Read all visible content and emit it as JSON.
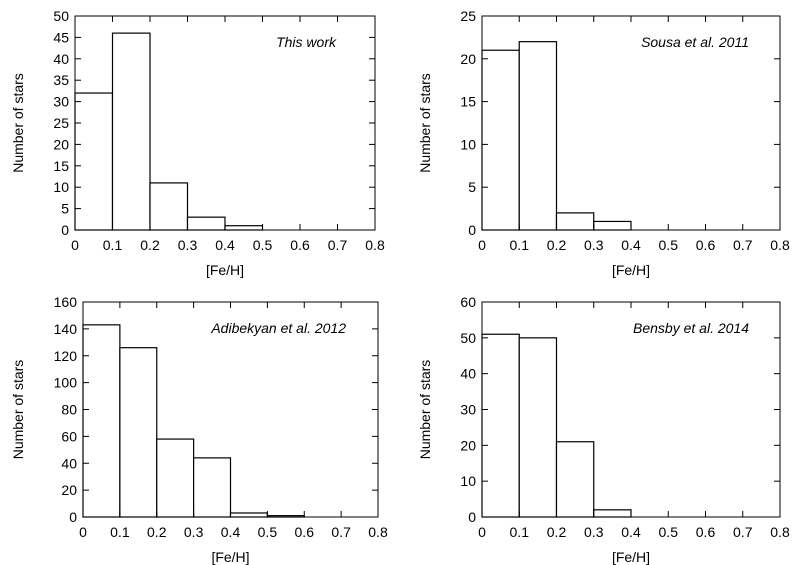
{
  "chart_data": [
    {
      "type": "bar",
      "annotation": "This work",
      "xlabel": "[Fe/H]",
      "ylabel": "Number of stars",
      "bin_edges": [
        0,
        0.1,
        0.2,
        0.3,
        0.4,
        0.5
      ],
      "values": [
        32,
        46,
        11,
        3,
        1
      ],
      "xlim": [
        0,
        0.8
      ],
      "ylim": [
        0,
        50
      ],
      "xticks": [
        "0",
        "0.1",
        "0.2",
        "0.3",
        "0.4",
        "0.5",
        "0.6",
        "0.7",
        "0.8"
      ],
      "yticks": [
        "0",
        "5",
        "10",
        "15",
        "20",
        "25",
        "30",
        "35",
        "40",
        "45",
        "50"
      ],
      "grid": false
    },
    {
      "type": "bar",
      "annotation": "Sousa et al. 2011",
      "xlabel": "[Fe/H]",
      "ylabel": "Number of stars",
      "bin_edges": [
        0,
        0.1,
        0.2,
        0.3,
        0.4
      ],
      "values": [
        21,
        22,
        2,
        1
      ],
      "xlim": [
        0,
        0.8
      ],
      "ylim": [
        0,
        25
      ],
      "xticks": [
        "0",
        "0.1",
        "0.2",
        "0.3",
        "0.4",
        "0.5",
        "0.6",
        "0.7",
        "0.8"
      ],
      "yticks": [
        "0",
        "5",
        "10",
        "15",
        "20",
        "25"
      ],
      "grid": false
    },
    {
      "type": "bar",
      "annotation": "Adibekyan et al. 2012",
      "xlabel": "[Fe/H]",
      "ylabel": "Number of stars",
      "bin_edges": [
        0,
        0.1,
        0.2,
        0.3,
        0.4,
        0.5,
        0.6
      ],
      "values": [
        143,
        126,
        58,
        44,
        3,
        1
      ],
      "xlim": [
        0,
        0.8
      ],
      "ylim": [
        0,
        160
      ],
      "xticks": [
        "0",
        "0.1",
        "0.2",
        "0.3",
        "0.4",
        "0.5",
        "0.6",
        "0.7",
        "0.8"
      ],
      "yticks": [
        "0",
        "20",
        "40",
        "60",
        "80",
        "100",
        "120",
        "140",
        "160"
      ],
      "grid": false
    },
    {
      "type": "bar",
      "annotation": "Bensby et al. 2014",
      "xlabel": "[Fe/H]",
      "ylabel": "Number of stars",
      "bin_edges": [
        0,
        0.1,
        0.2,
        0.3,
        0.4
      ],
      "values": [
        51,
        50,
        21,
        2
      ],
      "xlim": [
        0,
        0.8
      ],
      "ylim": [
        0,
        60
      ],
      "xticks": [
        "0",
        "0.1",
        "0.2",
        "0.3",
        "0.4",
        "0.5",
        "0.6",
        "0.7",
        "0.8"
      ],
      "yticks": [
        "0",
        "10",
        "20",
        "30",
        "40",
        "50",
        "60"
      ],
      "grid": false
    }
  ]
}
